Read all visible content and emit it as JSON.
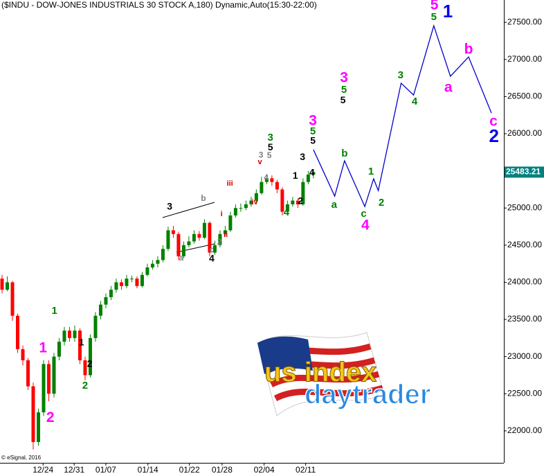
{
  "chart_data": {
    "type": "candlestick",
    "title": "($INDU - DOW-JONES INDUSTRIALS 30 STOCK A,180) Dynamic,Auto(15:30-22:00)",
    "copyright": "© eSignal, 2016",
    "xlim": [
      -0.4,
      96.7
    ],
    "xticks": [
      {
        "value": 7.9,
        "label": "12/24"
      },
      {
        "value": 13.9,
        "label": "12/31"
      },
      {
        "value": 20,
        "label": "01/07"
      },
      {
        "value": 28.1,
        "label": "01/14"
      },
      {
        "value": 36.1,
        "label": "01/22"
      },
      {
        "value": 42.4,
        "label": "01/28"
      },
      {
        "value": 50.5,
        "label": "02/04"
      },
      {
        "value": 58.5,
        "label": "02/11"
      }
    ],
    "ylim": [
      21570,
      27800
    ],
    "yticks": [
      {
        "value": 22000,
        "label": "22000.00"
      },
      {
        "value": 22500,
        "label": "22500.00"
      },
      {
        "value": 23000,
        "label": "23000.00"
      },
      {
        "value": 23500,
        "label": "23500.00"
      },
      {
        "value": 24000,
        "label": "24000.00"
      },
      {
        "value": 24500,
        "label": "24500.00"
      },
      {
        "value": 25000,
        "label": "25000.00"
      },
      {
        "value": 25500,
        "label": "25500.00"
      },
      {
        "value": 26000,
        "label": "26000.00"
      },
      {
        "value": 26500,
        "label": "26500.00"
      },
      {
        "value": 27000,
        "label": "27000.00"
      },
      {
        "value": 27500,
        "label": "27500.00"
      }
    ],
    "up_color": "#008000",
    "down_color": "#ff0000",
    "open": [
      24050,
      23900,
      24000,
      23550,
      23100,
      22950,
      22600,
      21850,
      22250,
      22900,
      22500,
      23000,
      23200,
      23350,
      23250,
      23350,
      22950,
      22750,
      23250,
      23550,
      23700,
      23800,
      23900,
      24000,
      23950,
      24050,
      24050,
      23950,
      24100,
      24200,
      24250,
      24300,
      24450,
      24700,
      24650,
      24350,
      24500,
      24550,
      24650,
      24600,
      24800,
      24400,
      24500,
      24650,
      24700,
      24900,
      25000,
      25000,
      25050,
      25100,
      25200,
      25350,
      25400,
      25350,
      25250,
      24950,
      25050,
      25100,
      25050,
      25350,
      25450
    ],
    "high": [
      24100,
      24080,
      24020,
      23580,
      23150,
      22980,
      22650,
      22300,
      22950,
      22950,
      23050,
      23250,
      23400,
      23400,
      23420,
      23380,
      23000,
      23300,
      23600,
      23750,
      23850,
      23950,
      24050,
      24040,
      24100,
      24090,
      24080,
      24140,
      24250,
      24300,
      24350,
      24500,
      24750,
      24760,
      24680,
      24550,
      24620,
      24700,
      24690,
      24850,
      24820,
      24560,
      24700,
      24760,
      24950,
      25050,
      25060,
      25100,
      25150,
      25250,
      25420,
      25450,
      25440,
      25380,
      25280,
      25100,
      25150,
      25130,
      25400,
      25500,
      25520
    ],
    "low": [
      23850,
      23880,
      23480,
      23050,
      22880,
      22550,
      21750,
      21800,
      22200,
      22400,
      22450,
      22950,
      23150,
      23200,
      23200,
      22900,
      22680,
      22720,
      23200,
      23500,
      23650,
      23760,
      23860,
      23900,
      23920,
      24000,
      23920,
      23930,
      24080,
      24170,
      24200,
      24270,
      24420,
      24600,
      24300,
      24320,
      24470,
      24520,
      24560,
      24580,
      24350,
      24370,
      24470,
      24620,
      24680,
      24870,
      24950,
      24970,
      25020,
      25080,
      25180,
      25320,
      25300,
      25200,
      24900,
      24920,
      25020,
      25000,
      25030,
      25320,
      25400
    ],
    "close": [
      23900,
      24000,
      23550,
      23100,
      22950,
      22600,
      21850,
      22250,
      22900,
      22500,
      23000,
      23200,
      23350,
      23250,
      23350,
      22950,
      22750,
      23250,
      23550,
      23700,
      23800,
      23900,
      24000,
      23950,
      24050,
      24050,
      23950,
      24100,
      24200,
      24250,
      24300,
      24450,
      24700,
      24650,
      24350,
      24500,
      24550,
      24650,
      24600,
      24800,
      24400,
      24500,
      24650,
      24700,
      24900,
      25000,
      25000,
      25050,
      25100,
      25200,
      25350,
      25400,
      25350,
      25250,
      24950,
      25050,
      25100,
      25050,
      25350,
      25450,
      25483.21
    ],
    "last_price": 25483.21,
    "last_price_color": "#008080",
    "projection": {
      "color": "#0000cc",
      "x": [
        60,
        64.1,
        66,
        69.9,
        71.6,
        72.5,
        76.9,
        79.3,
        83.2,
        86.4,
        89.9,
        94.3
      ],
      "values": [
        25785,
        25160,
        25636,
        25020,
        25393,
        25235,
        26680,
        26521,
        27453,
        26773,
        27034,
        26279
      ]
    },
    "wave_labels": [
      {
        "color": "#ff00ff",
        "labels": [
          {
            "text": "1",
            "x": 7.9,
            "y": 23110
          },
          {
            "text": "2",
            "x": 9.3,
            "y": 22170
          },
          {
            "text": "3",
            "x": 65.9,
            "y": 26745
          },
          {
            "text": "3",
            "x": 59.9,
            "y": 26167
          },
          {
            "text": "4",
            "x": 70,
            "y": 24759
          },
          {
            "text": "5",
            "x": 83.3,
            "y": 27724
          },
          {
            "text": "a",
            "x": 86,
            "y": 26614
          },
          {
            "text": "b",
            "x": 89.9,
            "y": 27127
          },
          {
            "text": "c",
            "x": 94.7,
            "y": 26158
          }
        ]
      },
      {
        "color": "#0000ee",
        "labels": [
          {
            "text": "1",
            "x": 85.9,
            "y": 27631
          },
          {
            "text": "2",
            "x": 94.8,
            "y": 25953
          }
        ]
      },
      {
        "color": "#008000",
        "labels": [
          {
            "text": "1",
            "x": 10.1,
            "y": 23613
          },
          {
            "text": "2",
            "x": 16,
            "y": 22606
          },
          {
            "text": "3",
            "x": 51.7,
            "y": 25943
          },
          {
            "text": "5",
            "x": 59.9,
            "y": 26027
          },
          {
            "text": "5",
            "x": 65.9,
            "y": 26586
          },
          {
            "text": "3",
            "x": 76.8,
            "y": 26782
          },
          {
            "text": "4",
            "x": 79.5,
            "y": 26428
          },
          {
            "text": "5",
            "x": 83.2,
            "y": 27565
          },
          {
            "text": "4",
            "x": 54.8,
            "y": 24936
          },
          {
            "text": "a",
            "x": 64,
            "y": 25039
          },
          {
            "text": "b",
            "x": 66,
            "y": 25729
          },
          {
            "text": "1",
            "x": 71.1,
            "y": 25486
          },
          {
            "text": "2",
            "x": 73.1,
            "y": 25067
          },
          {
            "text": "c",
            "x": 69.7,
            "y": 24918
          }
        ]
      },
      {
        "color": "#000000",
        "labels": [
          {
            "text": "1",
            "x": 15.3,
            "y": 23184
          },
          {
            "text": "2",
            "x": 16.9,
            "y": 22895
          },
          {
            "text": "3",
            "x": 32.3,
            "y": 25011
          },
          {
            "text": "4",
            "x": 40.4,
            "y": 24312
          },
          {
            "text": "5",
            "x": 51.7,
            "y": 25813
          },
          {
            "text": "3",
            "x": 57.9,
            "y": 25682
          },
          {
            "text": "4",
            "x": 59.7,
            "y": 25468
          },
          {
            "text": "1",
            "x": 56.5,
            "y": 25430
          },
          {
            "text": "2",
            "x": 57.5,
            "y": 25086
          },
          {
            "text": "5",
            "x": 65.7,
            "y": 26447
          },
          {
            "text": "5",
            "x": 59.9,
            "y": 25897
          }
        ]
      },
      {
        "color": "#808080",
        "labels": [
          {
            "text": "b",
            "x": 38.8,
            "y": 25123
          },
          {
            "text": "a",
            "x": 34.5,
            "y": 24321
          },
          {
            "text": "c",
            "x": 40.4,
            "y": 24433
          },
          {
            "text": "2",
            "x": 41.9,
            "y": 24536
          },
          {
            "text": "3",
            "x": 49.9,
            "y": 25710
          },
          {
            "text": "5",
            "x": 51.5,
            "y": 25701
          },
          {
            "text": "4",
            "x": 50.9,
            "y": 25403
          }
        ]
      },
      {
        "color": "#cc0000",
        "labels": [
          {
            "text": "v",
            "x": 49.7,
            "y": 25617
          },
          {
            "text": "iii",
            "x": 43.9,
            "y": 25328
          },
          {
            "text": "iv",
            "x": 48.7,
            "y": 25076
          },
          {
            "text": "i",
            "x": 42.3,
            "y": 24918
          },
          {
            "text": "ii",
            "x": 43.1,
            "y": 24638
          }
        ]
      }
    ]
  },
  "logo": {
    "line1": "us index",
    "line2": "daytrader"
  }
}
